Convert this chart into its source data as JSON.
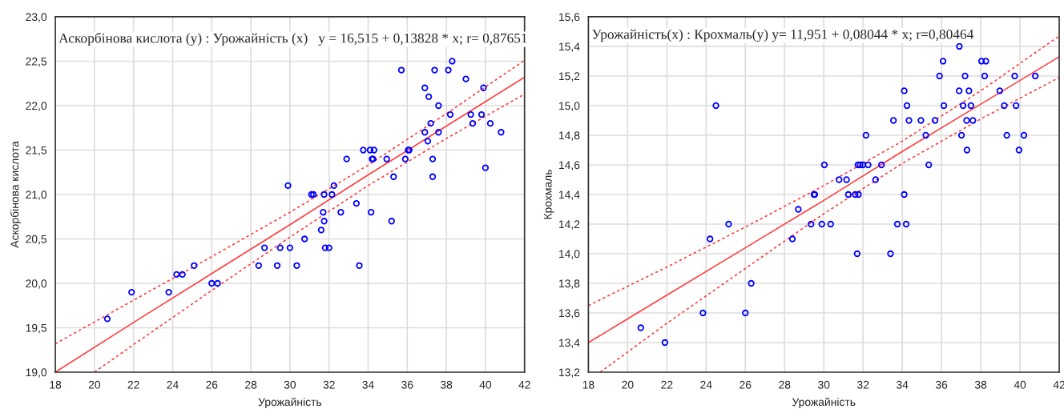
{
  "chart_data": [
    {
      "type": "scatter",
      "title": "Аскорбінова кислота (y) : Урожайність (x)   y = 16,515 + 0,13828 * x; r= 0,87651",
      "xlabel": "Урожайність",
      "ylabel": "Аскорбінова кислота",
      "grid": true,
      "legend": false,
      "xlim": [
        18,
        42
      ],
      "xticks": [
        18,
        20,
        22,
        24,
        26,
        28,
        30,
        32,
        34,
        36,
        38,
        40,
        42
      ],
      "ylim": [
        19.0,
        23.0
      ],
      "yticks": [
        {
          "value": 19.0,
          "label": "19,0"
        },
        {
          "value": 19.5,
          "label": "19,5"
        },
        {
          "value": 20.0,
          "label": "20,0"
        },
        {
          "value": 20.5,
          "label": "20,5"
        },
        {
          "value": 21.0,
          "label": "21,0"
        },
        {
          "value": 21.5,
          "label": "21,5"
        },
        {
          "value": 22.0,
          "label": "22,0"
        },
        {
          "value": 22.5,
          "label": "22,5"
        },
        {
          "value": 23.0,
          "label": "23,0"
        }
      ],
      "series": [
        {
          "color": "#0000ff",
          "marker": "circle",
          "x": [
            20.66,
            21.9,
            23.8,
            24.2,
            24.5,
            25.1,
            26.0,
            26.3,
            28.4,
            28.7,
            29.35,
            29.5,
            29.9,
            30.0,
            30.35,
            30.75,
            31.1,
            31.2,
            31.6,
            31.7,
            31.75,
            31.75,
            31.8,
            32.0,
            32.15,
            32.25,
            32.6,
            32.9,
            33.4,
            33.55,
            33.75,
            34.15,
            34.1,
            34.3,
            34.2,
            34.25,
            34.95,
            35.2,
            35.3,
            35.7,
            35.9,
            36.05,
            36.1,
            36.9,
            36.9,
            37.05,
            37.1,
            37.2,
            37.3,
            37.3,
            37.4,
            37.6,
            37.6,
            38.1,
            38.2,
            38.3,
            39.0,
            39.25,
            39.35,
            39.8,
            39.9,
            40.0,
            40.25,
            40.8
          ],
          "values": [
            19.6,
            19.9,
            19.9,
            20.1,
            20.1,
            20.2,
            20.0,
            20.0,
            20.2,
            20.4,
            20.2,
            20.4,
            21.1,
            20.4,
            20.2,
            20.5,
            21.0,
            21.0,
            20.6,
            20.8,
            20.7,
            21.0,
            20.4,
            20.4,
            21.0,
            21.1,
            20.8,
            21.4,
            20.9,
            20.2,
            21.5,
            20.8,
            21.5,
            21.5,
            21.4,
            21.4,
            21.4,
            20.7,
            21.2,
            22.4,
            21.4,
            21.5,
            21.5,
            21.7,
            22.2,
            21.6,
            22.1,
            21.8,
            21.4,
            21.2,
            22.4,
            21.7,
            22.0,
            22.4,
            21.9,
            22.5,
            22.3,
            21.9,
            21.8,
            21.9,
            22.2,
            21.3,
            21.8,
            21.7
          ]
        },
        {
          "type": "line",
          "color": "#ff4040",
          "line_style": "solid",
          "x": [
            18,
            22,
            26,
            30,
            34,
            38,
            42
          ],
          "values": [
            19.0,
            19.56,
            20.11,
            20.66,
            21.22,
            21.77,
            22.32
          ]
        },
        {
          "type": "line",
          "color": "#ff4040",
          "line_style": "dotted",
          "x": [
            18,
            22,
            26,
            30,
            34,
            38,
            42
          ],
          "values": [
            19.32,
            19.81,
            20.3,
            20.8,
            21.33,
            21.91,
            22.51
          ]
        },
        {
          "type": "line",
          "color": "#ff4040",
          "line_style": "dotted",
          "x": [
            20,
            22,
            26,
            30,
            34,
            38,
            42
          ],
          "values": [
            19.0,
            19.31,
            19.92,
            20.52,
            21.1,
            21.63,
            22.13
          ]
        }
      ]
    },
    {
      "type": "scatter",
      "title": "Урожайність(x) : Крохмаль(y) y= 11,951 + 0,08044 * x; r=0,80464",
      "xlabel": "Урожайність",
      "ylabel": "Крохмаль",
      "grid": true,
      "legend": false,
      "xlim": [
        18,
        42
      ],
      "xticks": [
        18,
        20,
        22,
        24,
        26,
        28,
        30,
        32,
        34,
        36,
        38,
        40,
        42
      ],
      "ylim": [
        13.2,
        15.6
      ],
      "yticks": [
        {
          "value": 13.2,
          "label": "13,2"
        },
        {
          "value": 13.4,
          "label": "13,4"
        },
        {
          "value": 13.6,
          "label": "13,6"
        },
        {
          "value": 13.8,
          "label": "13,8"
        },
        {
          "value": 14.0,
          "label": "14,0"
        },
        {
          "value": 14.2,
          "label": "14,2"
        },
        {
          "value": 14.4,
          "label": "14,4"
        },
        {
          "value": 14.6,
          "label": "14,6"
        },
        {
          "value": 14.8,
          "label": "14,8"
        },
        {
          "value": 15.0,
          "label": "15,0"
        },
        {
          "value": 15.2,
          "label": "15,2"
        },
        {
          "value": 15.4,
          "label": "15,4"
        },
        {
          "value": 15.6,
          "label": "15,6"
        }
      ],
      "series": [
        {
          "color": "#0000ff",
          "marker": "circle",
          "x": [
            20.67,
            21.9,
            23.84,
            24.2,
            24.5,
            25.15,
            26.0,
            26.3,
            28.4,
            28.7,
            29.35,
            29.5,
            29.9,
            30.35,
            29.54,
            30.03,
            30.78,
            31.16,
            31.25,
            31.6,
            31.77,
            31.74,
            31.85,
            31.99,
            31.7,
            32.15,
            32.26,
            32.64,
            32.94,
            33.4,
            33.55,
            33.75,
            34.2,
            34.1,
            34.1,
            34.24,
            34.34,
            34.95,
            35.2,
            35.35,
            35.67,
            35.9,
            36.08,
            36.12,
            36.9,
            36.91,
            37.02,
            37.1,
            37.2,
            37.28,
            37.3,
            37.4,
            37.5,
            37.6,
            38.04,
            38.26,
            38.2,
            38.97,
            39.2,
            39.33,
            39.73,
            39.8,
            39.95,
            40.2,
            40.78
          ],
          "values": [
            13.5,
            13.4,
            13.6,
            14.1,
            15.0,
            14.2,
            13.6,
            13.8,
            14.1,
            14.3,
            14.2,
            14.4,
            14.2,
            14.2,
            14.4,
            14.6,
            14.5,
            14.5,
            14.4,
            14.4,
            14.4,
            14.6,
            14.6,
            14.6,
            14.0,
            14.8,
            14.6,
            14.5,
            14.6,
            14.0,
            14.9,
            14.2,
            14.2,
            15.1,
            14.4,
            15.0,
            14.9,
            14.9,
            14.8,
            14.6,
            14.9,
            15.2,
            15.3,
            15.0,
            15.1,
            15.4,
            14.8,
            15.0,
            15.2,
            14.9,
            14.7,
            15.1,
            15.0,
            14.9,
            15.3,
            15.3,
            15.2,
            15.1,
            15.0,
            14.8,
            15.2,
            15.0,
            14.7,
            14.8,
            15.2
          ]
        },
        {
          "type": "line",
          "color": "#ff4040",
          "line_style": "solid",
          "x": [
            18,
            22,
            26,
            30,
            34,
            38,
            42
          ],
          "values": [
            13.4,
            13.72,
            14.04,
            14.36,
            14.69,
            15.01,
            15.33
          ]
        },
        {
          "type": "line",
          "color": "#ff4040",
          "line_style": "dotted",
          "x": [
            18,
            22,
            26,
            30,
            34,
            38,
            42
          ],
          "values": [
            13.65,
            13.91,
            14.18,
            14.46,
            14.76,
            15.1,
            15.47
          ]
        },
        {
          "type": "line",
          "color": "#ff4040",
          "line_style": "dotted",
          "x": [
            18.6,
            22,
            26,
            30,
            34,
            38,
            42
          ],
          "values": [
            13.2,
            13.53,
            13.9,
            14.27,
            14.61,
            14.91,
            15.19
          ]
        }
      ]
    }
  ]
}
